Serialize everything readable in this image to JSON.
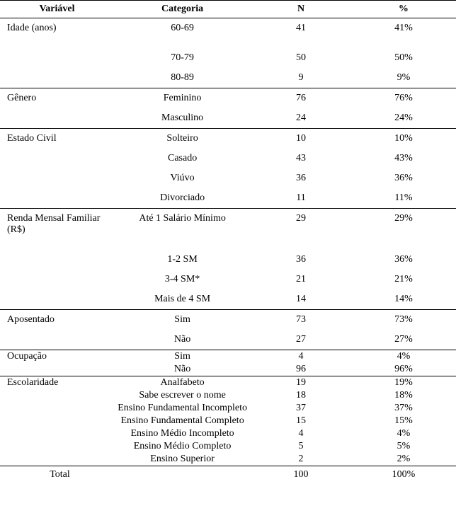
{
  "type": "table",
  "background_color": "#ffffff",
  "text_color": "#000000",
  "font_family": "Times New Roman",
  "font_size_pt": 11,
  "border_color": "#000000",
  "columns": [
    "Variável",
    "Categoria",
    "N",
    "%"
  ],
  "column_align": [
    "left",
    "center",
    "center",
    "center"
  ],
  "groups": [
    {
      "variable": "Idade (anos)",
      "rows": [
        {
          "categoria": "60-69",
          "n": "41",
          "pct": "41%"
        },
        {
          "categoria": "70-79",
          "n": "50",
          "pct": "50%"
        },
        {
          "categoria": "80-89",
          "n": "9",
          "pct": "9%"
        }
      ],
      "spacing": "normal"
    },
    {
      "variable": "Gênero",
      "rows": [
        {
          "categoria": "Feminino",
          "n": "76",
          "pct": "76%"
        },
        {
          "categoria": "Masculino",
          "n": "24",
          "pct": "24%"
        }
      ],
      "spacing": "normal"
    },
    {
      "variable": "Estado Civil",
      "rows": [
        {
          "categoria": "Solteiro",
          "n": "10",
          "pct": "10%"
        },
        {
          "categoria": "Casado",
          "n": "43",
          "pct": "43%"
        },
        {
          "categoria": "Viúvo",
          "n": "36",
          "pct": "36%"
        },
        {
          "categoria": "Divorciado",
          "n": "11",
          "pct": "11%"
        }
      ],
      "spacing": "normal"
    },
    {
      "variable": "Renda Mensal Familiar (R$)",
      "rows": [
        {
          "categoria": "Até 1 Salário Mínimo",
          "n": "29",
          "pct": "29%"
        },
        {
          "categoria": "1-2 SM",
          "n": "36",
          "pct": "36%"
        },
        {
          "categoria": "3-4 SM*",
          "n": "21",
          "pct": "21%"
        },
        {
          "categoria": "Mais de 4 SM",
          "n": "14",
          "pct": "14%"
        }
      ],
      "spacing": "normal"
    },
    {
      "variable": "Aposentado",
      "rows": [
        {
          "categoria": "Sim",
          "n": "73",
          "pct": "73%"
        },
        {
          "categoria": "Não",
          "n": "27",
          "pct": "27%"
        }
      ],
      "spacing": "normal"
    },
    {
      "variable": "Ocupação",
      "rows": [
        {
          "categoria": "Sim",
          "n": "4",
          "pct": "4%"
        },
        {
          "categoria": "Não",
          "n": "96",
          "pct": "96%"
        }
      ],
      "spacing": "tight"
    },
    {
      "variable": "Escolaridade",
      "rows": [
        {
          "categoria": "Analfabeto",
          "n": "19",
          "pct": "19%"
        },
        {
          "categoria": "Sabe escrever o nome",
          "n": "18",
          "pct": "18%"
        },
        {
          "categoria": "Ensino Fundamental Incompleto",
          "n": "37",
          "pct": "37%"
        },
        {
          "categoria": "Ensino Fundamental Completo",
          "n": "15",
          "pct": "15%"
        },
        {
          "categoria": "Ensino Médio Incompleto",
          "n": "4",
          "pct": "4%"
        },
        {
          "categoria": "Ensino Médio Completo",
          "n": "5",
          "pct": "5%"
        },
        {
          "categoria": "Ensino Superior",
          "n": "2",
          "pct": "2%"
        }
      ],
      "spacing": "tight"
    }
  ],
  "total_row": {
    "label": "Total",
    "n": "100",
    "pct": "100%"
  }
}
